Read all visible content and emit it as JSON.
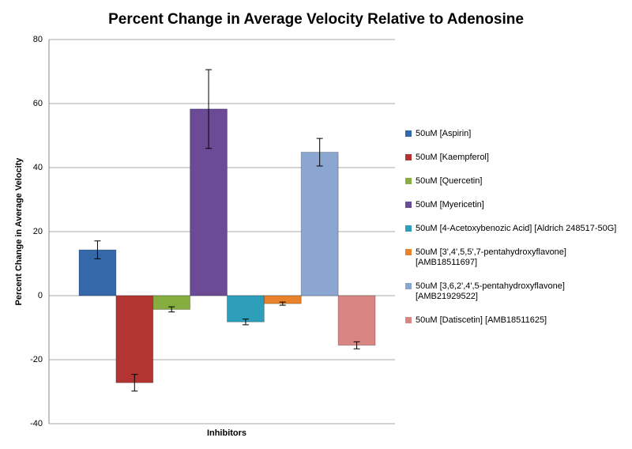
{
  "chart_data": {
    "type": "bar",
    "title": "Percent Change in Average Velocity Relative to Adenosine",
    "y_label": "Percent Change in Average Velocity",
    "x_label": "Inhibitors",
    "ylim": [
      -40,
      80
    ],
    "yticks": [
      -40,
      -20,
      0,
      20,
      40,
      60,
      80
    ],
    "grid": true,
    "legend": "right",
    "series": [
      {
        "name": "50uM [Aspirin]",
        "color": "#3468a8",
        "values": [
          14.3
        ],
        "errors": [
          2.8
        ]
      },
      {
        "name": "50uM [Kaempferol]",
        "color": "#b33432",
        "values": [
          -27.2
        ],
        "errors": [
          2.6
        ]
      },
      {
        "name": "50uM [Quercetin]",
        "color": "#86ad3f",
        "values": [
          -4.3
        ],
        "errors": [
          0.8
        ]
      },
      {
        "name": "50uM [Myericetin]",
        "color": "#6b4a96",
        "values": [
          58.3
        ],
        "errors": [
          12.3
        ]
      },
      {
        "name": "50uM [4-Acetoxybenozic Acid] [Aldrich 248517-50G]",
        "color": "#2e9fbb",
        "values": [
          -8.2
        ],
        "errors": [
          0.9
        ]
      },
      {
        "name": "50uM [3',4',5,5',7-pentahydroxyflavone] [AMB18511697]",
        "color": "#e9822a",
        "values": [
          -2.5
        ],
        "errors": [
          0.5
        ]
      },
      {
        "name": "50uM [3,6,2',4',5-pentahydroxyflavone] [AMB21929522]",
        "color": "#8ca6d2",
        "values": [
          44.8
        ],
        "errors": [
          4.3
        ]
      },
      {
        "name": "50uM [Datiscetin] [AMB18511625]",
        "color": "#d88583",
        "values": [
          -15.5
        ],
        "errors": [
          1.1
        ]
      }
    ]
  }
}
